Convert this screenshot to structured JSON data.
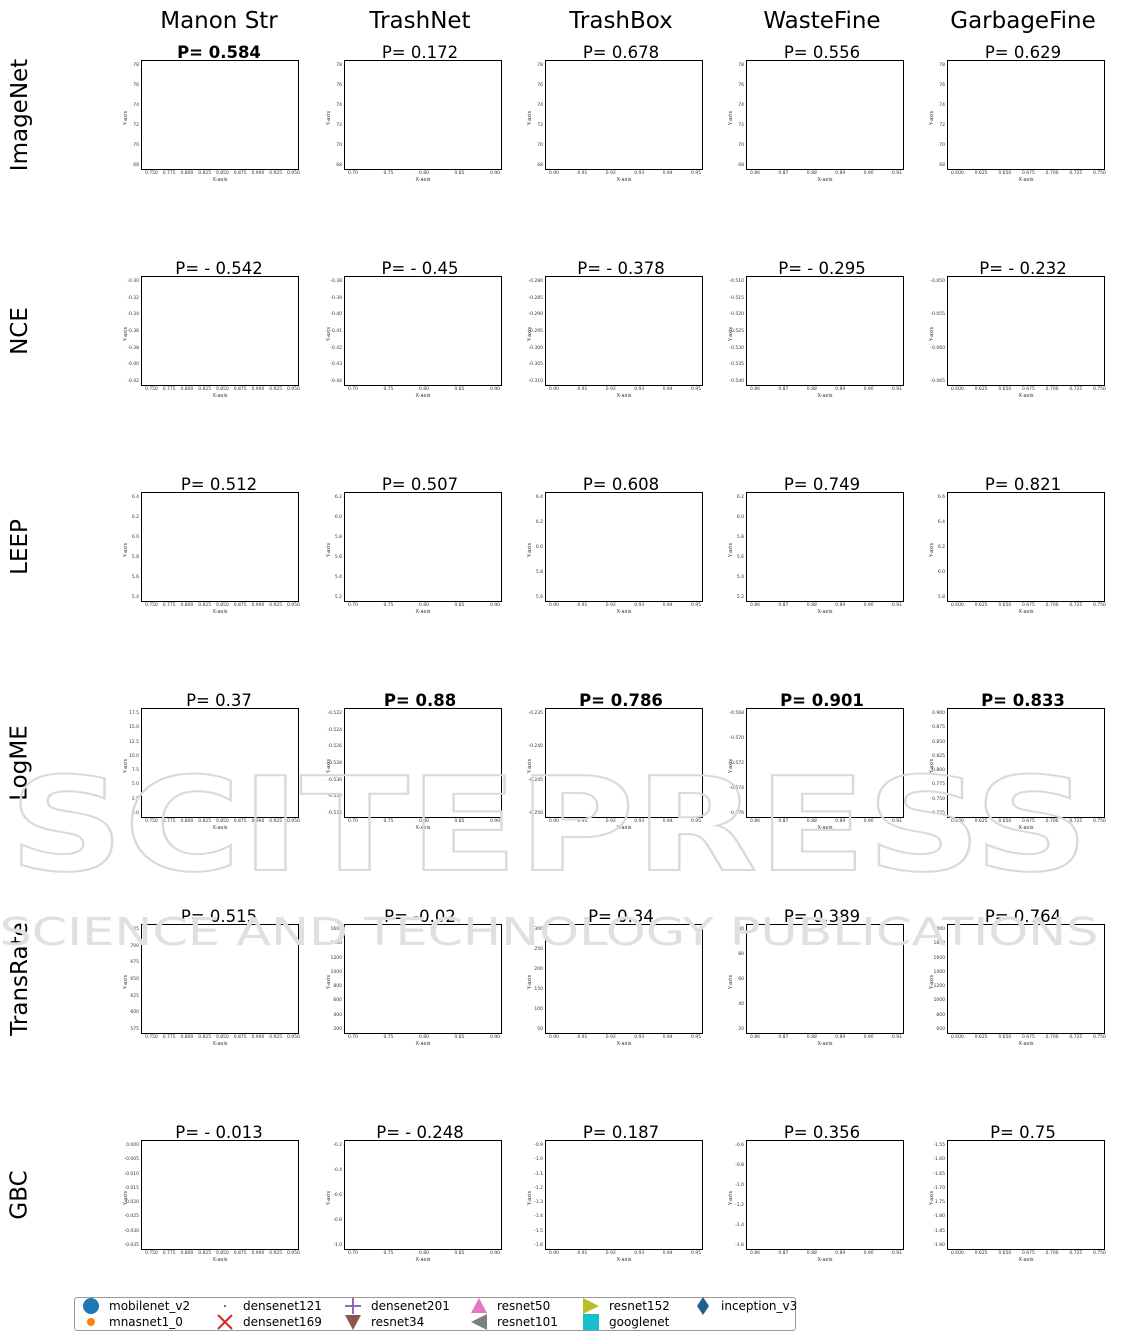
{
  "columns": [
    "Manon Str",
    "TrashNet",
    "TrashBox",
    "WasteFine",
    "GarbageFine"
  ],
  "rows": [
    "ImageNet",
    "NCE",
    "LEEP",
    "LogME",
    "TransRate",
    "GBC"
  ],
  "p_values": [
    [
      {
        "text": "P= 0.584",
        "bold": true
      },
      {
        "text": "P= 0.172",
        "bold": false
      },
      {
        "text": "P= 0.678",
        "bold": false
      },
      {
        "text": "P= 0.556",
        "bold": false
      },
      {
        "text": "P= 0.629",
        "bold": false
      }
    ],
    [
      {
        "text": "P= - 0.542",
        "bold": false
      },
      {
        "text": "P= - 0.45",
        "bold": false
      },
      {
        "text": "P= - 0.378",
        "bold": false
      },
      {
        "text": "P= - 0.295",
        "bold": false
      },
      {
        "text": "P= - 0.232",
        "bold": false
      }
    ],
    [
      {
        "text": "P= 0.512",
        "bold": false
      },
      {
        "text": "P= 0.507",
        "bold": false
      },
      {
        "text": "P= 0.608",
        "bold": false
      },
      {
        "text": "P= 0.749",
        "bold": false
      },
      {
        "text": "P= 0.821",
        "bold": false
      }
    ],
    [
      {
        "text": "P= 0.37",
        "bold": false
      },
      {
        "text": "P= 0.88",
        "bold": true
      },
      {
        "text": "P= 0.786",
        "bold": true
      },
      {
        "text": "P= 0.901",
        "bold": true
      },
      {
        "text": "P= 0.833",
        "bold": true
      }
    ],
    [
      {
        "text": "P= 0.515",
        "bold": false
      },
      {
        "text": "P= -0.02",
        "bold": false
      },
      {
        "text": "P= 0.34",
        "bold": false
      },
      {
        "text": "P= 0.389",
        "bold": false
      },
      {
        "text": "P= 0.764",
        "bold": false
      }
    ],
    [
      {
        "text": "P= - 0.013",
        "bold": false
      },
      {
        "text": "P= - 0.248",
        "bold": false
      },
      {
        "text": "P= 0.187",
        "bold": false
      },
      {
        "text": "P= 0.356",
        "bold": false
      },
      {
        "text": "P= 0.75",
        "bold": false
      }
    ]
  ],
  "axis_labels": {
    "x": "X-axis",
    "y": "Y-axis"
  },
  "legend": [
    {
      "name": "mobilenet_v2",
      "color": "#1f77b4",
      "marker": "circle"
    },
    {
      "name": "mnasnet1_0",
      "color": "#ff7f0e",
      "marker": "point"
    },
    {
      "name": "densenet121",
      "color": "#2ca02c",
      "marker": "pixel"
    },
    {
      "name": "densenet169",
      "color": "#d62728",
      "marker": "x"
    },
    {
      "name": "densenet201",
      "color": "#9467bd",
      "marker": "plus"
    },
    {
      "name": "resnet34",
      "color": "#8c564b",
      "marker": "triangle-down"
    },
    {
      "name": "resnet50",
      "color": "#e377c2",
      "marker": "triangle-up"
    },
    {
      "name": "resnet101",
      "color": "#7f7f7f",
      "marker": "triangle-left"
    },
    {
      "name": "resnet152",
      "color": "#bcbd22",
      "marker": "triangle-right"
    },
    {
      "name": "googlenet",
      "color": "#17becf",
      "marker": "square"
    },
    {
      "name": "inception_v3",
      "color": "#1f5f8b",
      "marker": "diamond"
    }
  ],
  "col_x_ticks": [
    [
      "0.750",
      "0.775",
      "0.800",
      "0.825",
      "0.850",
      "0.875",
      "0.900",
      "0.925",
      "0.950"
    ],
    [
      "0.70",
      "0.75",
      "0.80",
      "0.85",
      "0.90"
    ],
    [
      "0.90",
      "0.91",
      "0.92",
      "0.93",
      "0.94",
      "0.95"
    ],
    [
      "0.86",
      "0.87",
      "0.88",
      "0.89",
      "0.90",
      "0.91"
    ],
    [
      "0.600",
      "0.625",
      "0.650",
      "0.675",
      "0.700",
      "0.725",
      "0.750"
    ]
  ],
  "row_y_ticks": [
    [
      [
        "78",
        "76",
        "74",
        "72",
        "70",
        "68"
      ],
      [
        "78",
        "76",
        "74",
        "72",
        "70",
        "68"
      ],
      [
        "78",
        "76",
        "74",
        "72",
        "70",
        "68"
      ],
      [
        "78",
        "76",
        "74",
        "72",
        "70",
        "68"
      ],
      [
        "78",
        "76",
        "74",
        "72",
        "70",
        "68"
      ]
    ],
    [
      [
        "-0.30",
        "-0.32",
        "-0.34",
        "-0.36",
        "-0.38",
        "-0.40",
        "-0.42"
      ],
      [
        "-0.38",
        "-0.39",
        "-0.40",
        "-0.41",
        "-0.42",
        "-0.43",
        "-0.44"
      ],
      [
        "-0.280",
        "-0.285",
        "-0.290",
        "-0.295",
        "-0.300",
        "-0.305",
        "-0.310"
      ],
      [
        "-0.510",
        "-0.515",
        "-0.520",
        "-0.525",
        "-0.530",
        "-0.535",
        "-0.540"
      ],
      [
        "-0.050",
        "-0.055",
        "-0.060",
        "-0.065"
      ]
    ],
    [
      [
        "6.4",
        "6.2",
        "6.0",
        "5.8",
        "5.6",
        "5.4"
      ],
      [
        "6.2",
        "6.0",
        "5.8",
        "5.6",
        "5.4",
        "5.2"
      ],
      [
        "6.4",
        "6.2",
        "6.0",
        "5.8",
        "5.6"
      ],
      [
        "6.2",
        "6.0",
        "5.8",
        "5.6",
        "5.4",
        "5.2"
      ],
      [
        "6.6",
        "6.4",
        "6.2",
        "6.0",
        "5.8"
      ]
    ],
    [
      [
        "17.5",
        "15.0",
        "12.5",
        "10.0",
        "7.5",
        "5.0",
        "2.5",
        "0.0"
      ],
      [
        "-0.522",
        "-0.524",
        "-0.526",
        "-0.528",
        "-0.530",
        "-0.532",
        "-0.534"
      ],
      [
        "-0.235",
        "-0.240",
        "-0.245",
        "-0.250"
      ],
      [
        "-0.568",
        "-0.570",
        "-0.572",
        "-0.574",
        "-0.576"
      ],
      [
        "0.900",
        "0.875",
        "0.850",
        "0.825",
        "0.800",
        "0.775",
        "0.750",
        "0.725"
      ]
    ],
    [
      [
        "725",
        "700",
        "675",
        "650",
        "625",
        "600",
        "575"
      ],
      [
        "1600",
        "1400",
        "1200",
        "1000",
        "800",
        "600",
        "400",
        "200"
      ],
      [
        "300",
        "250",
        "200",
        "150",
        "100",
        "50"
      ],
      [
        "100",
        "80",
        "60",
        "40",
        "20"
      ],
      [
        "2000",
        "1800",
        "1600",
        "1400",
        "1200",
        "1000",
        "800",
        "600"
      ]
    ],
    [
      [
        "0.000",
        "-0.005",
        "-0.010",
        "-0.015",
        "-0.020",
        "-0.025",
        "-0.030",
        "-0.035"
      ],
      [
        "-0.2",
        "-0.4",
        "-0.6",
        "-0.8",
        "-1.0"
      ],
      [
        "-0.9",
        "-1.0",
        "-1.1",
        "-1.2",
        "-1.3",
        "-1.4",
        "-1.5",
        "-1.6"
      ],
      [
        "-0.6",
        "-0.8",
        "-1.0",
        "-1.2",
        "-1.4",
        "-1.6"
      ],
      [
        "-1.55",
        "-1.60",
        "-1.65",
        "-1.70",
        "-1.75",
        "-1.80",
        "-1.85",
        "-1.90"
      ]
    ]
  ],
  "watermark": {
    "line1": "SCITEPRESS",
    "line2": "SCIENCE AND TECHNOLOGY PUBLICATIONS"
  },
  "chart_data": {
    "type": "scatter",
    "layout": "grid of 6 rows x 5 columns",
    "title": "",
    "xlabel": "X-axis",
    "ylabel": "Y-axis",
    "series": [
      {
        "name": "mobilenet_v2",
        "color": "#1f77b4",
        "marker": "circle"
      },
      {
        "name": "mnasnet1_0",
        "color": "#ff7f0e",
        "marker": "point"
      },
      {
        "name": "densenet121",
        "color": "#2ca02c",
        "marker": "pixel"
      },
      {
        "name": "densenet169",
        "color": "#d62728",
        "marker": "x"
      },
      {
        "name": "densenet201",
        "color": "#9467bd",
        "marker": "plus"
      },
      {
        "name": "resnet34",
        "color": "#8c564b",
        "marker": "triangle-down"
      },
      {
        "name": "resnet50",
        "color": "#e377c2",
        "marker": "triangle-up"
      },
      {
        "name": "resnet101",
        "color": "#7f7f7f",
        "marker": "triangle-left"
      },
      {
        "name": "resnet152",
        "color": "#bcbd22",
        "marker": "triangle-right"
      },
      {
        "name": "googlenet",
        "color": "#17becf",
        "marker": "square"
      },
      {
        "name": "inception_v3",
        "color": "#1f5f8b",
        "marker": "diamond"
      }
    ],
    "grid": false,
    "legend_position": "bottom-left"
  }
}
